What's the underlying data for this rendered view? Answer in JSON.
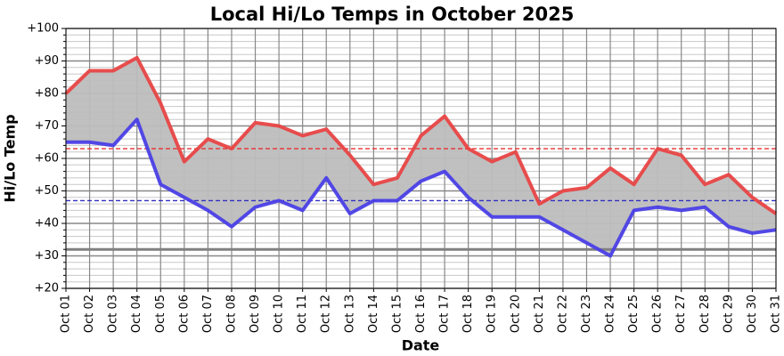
{
  "chart_data": {
    "type": "line",
    "title": "Local Hi/Lo Temps in October 2025",
    "x_label": "Date",
    "y_label": "Hi/Lo Temp",
    "categories": [
      "Oct 01",
      "Oct 02",
      "Oct 03",
      "Oct 04",
      "Oct 05",
      "Oct 06",
      "Oct 07",
      "Oct 08",
      "Oct 09",
      "Oct 10",
      "Oct 11",
      "Oct 12",
      "Oct 13",
      "Oct 14",
      "Oct 15",
      "Oct 16",
      "Oct 17",
      "Oct 18",
      "Oct 19",
      "Oct 20",
      "Oct 21",
      "Oct 22",
      "Oct 23",
      "Oct 24",
      "Oct 25",
      "Oct 26",
      "Oct 27",
      "Oct 28",
      "Oct 29",
      "Oct 30",
      "Oct 31"
    ],
    "series": [
      {
        "color": "#e84545",
        "values": [
          80,
          87,
          87,
          91,
          77,
          59,
          66,
          63,
          71,
          70,
          67,
          69,
          61,
          52,
          54,
          67,
          73,
          63,
          59,
          62,
          46,
          50,
          51,
          57,
          52,
          63,
          61,
          52,
          55,
          48,
          43
        ]
      },
      {
        "color": "#4a3fe6",
        "values": [
          65,
          65,
          64,
          72,
          52,
          48,
          44,
          39,
          45,
          47,
          44,
          54,
          43,
          47,
          47,
          53,
          56,
          48,
          42,
          42,
          42,
          38,
          34,
          30,
          44,
          45,
          44,
          45,
          39,
          37,
          38
        ]
      }
    ],
    "fill_between": true,
    "fill_color": "#bdbdbd",
    "ylim": [
      20,
      100
    ],
    "yticks": [
      {
        "value": 20,
        "label": "+20"
      },
      {
        "value": 30,
        "label": "+30"
      },
      {
        "value": 40,
        "label": "+40"
      },
      {
        "value": 50,
        "label": "+50"
      },
      {
        "value": 60,
        "label": "+60"
      },
      {
        "value": 70,
        "label": "+70"
      },
      {
        "value": 80,
        "label": "+80"
      },
      {
        "value": 90,
        "label": "+90"
      },
      {
        "value": 100,
        "label": "+100"
      }
    ],
    "yminor_ticks": [
      22,
      24,
      26,
      28,
      32,
      34,
      36,
      38,
      42,
      44,
      46,
      48,
      52,
      54,
      56,
      58,
      62,
      64,
      66,
      68,
      72,
      74,
      76,
      78,
      82,
      84,
      86,
      88,
      92,
      94,
      96,
      98
    ],
    "grid": true,
    "reference_lines": [
      {
        "value": 63,
        "color": "#e83030",
        "style": "dashed"
      },
      {
        "value": 47,
        "color": "#3030c0",
        "style": "dashed"
      },
      {
        "value": 32,
        "color": "#808080",
        "style": "solid"
      }
    ]
  }
}
